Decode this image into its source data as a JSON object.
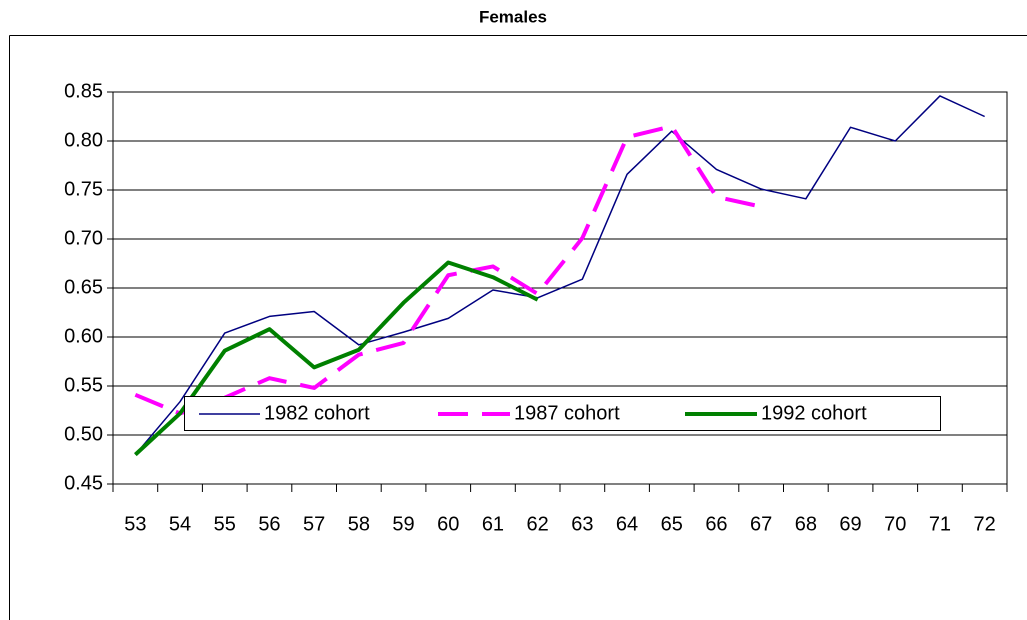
{
  "chart_data": {
    "type": "line",
    "title": "Females",
    "categories": [
      "53",
      "54",
      "55",
      "56",
      "57",
      "58",
      "59",
      "60",
      "61",
      "62",
      "63",
      "64",
      "65",
      "66",
      "67",
      "68",
      "69",
      "70",
      "71",
      "72"
    ],
    "series": [
      {
        "name": "1982 cohort",
        "color": "#000080",
        "dash": false,
        "width": 1.5,
        "values": [
          0.48,
          0.534,
          0.604,
          0.621,
          0.626,
          0.592,
          0.605,
          0.619,
          0.648,
          0.64,
          0.659,
          0.766,
          0.81,
          0.771,
          0.751,
          0.741,
          0.814,
          0.8,
          0.846,
          0.825
        ]
      },
      {
        "name": "1987 cohort",
        "color": "#ff00ff",
        "dash": true,
        "width": 4,
        "values": [
          0.541,
          0.522,
          0.538,
          0.558,
          0.548,
          0.582,
          0.594,
          0.663,
          0.672,
          0.644,
          0.701,
          0.804,
          0.815,
          0.743,
          0.733,
          null,
          null,
          null,
          null,
          null
        ]
      },
      {
        "name": "1992 cohort",
        "color": "#008000",
        "dash": false,
        "width": 4,
        "values": [
          0.48,
          0.522,
          0.586,
          0.608,
          0.569,
          0.587,
          0.635,
          0.676,
          0.661,
          0.638,
          null,
          null,
          null,
          null,
          null,
          null,
          null,
          null,
          null,
          null
        ]
      }
    ],
    "ylim": [
      0.45,
      0.85
    ],
    "yticks": [
      {
        "value": 0.45,
        "label": "0.45"
      },
      {
        "value": 0.5,
        "label": "0.50"
      },
      {
        "value": 0.55,
        "label": "0.55"
      },
      {
        "value": 0.6,
        "label": "0.60"
      },
      {
        "value": 0.65,
        "label": "0.65"
      },
      {
        "value": 0.7,
        "label": "0.70"
      },
      {
        "value": 0.75,
        "label": "0.75"
      },
      {
        "value": 0.8,
        "label": "0.80"
      },
      {
        "value": 0.85,
        "label": "0.85"
      }
    ],
    "grid": true,
    "legend": "bottom"
  }
}
